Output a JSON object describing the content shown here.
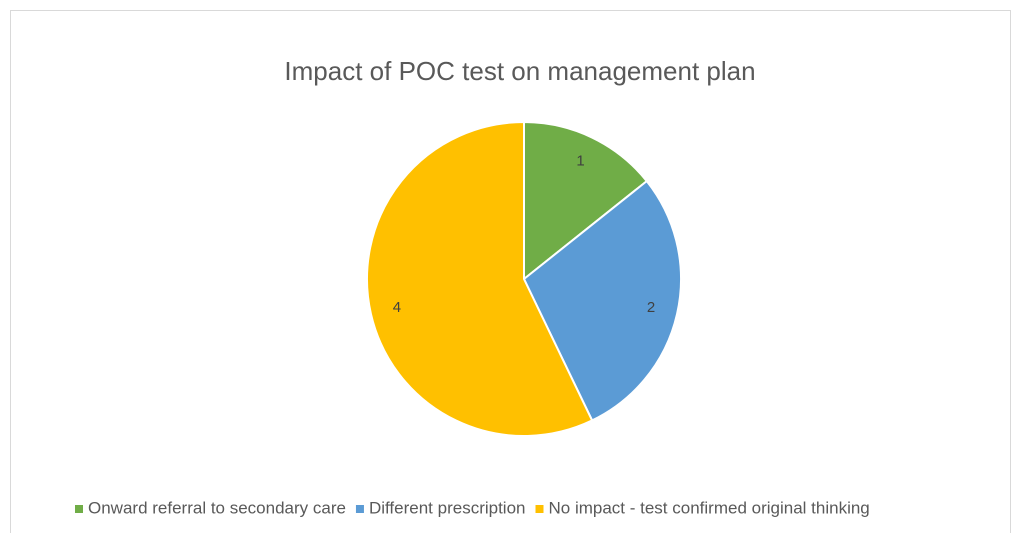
{
  "chart_data": {
    "type": "pie",
    "title": "Impact of POC test on management plan",
    "categories": [
      "Onward referral to secondary care",
      "Different prescription",
      "No impact - test confirmed original thinking"
    ],
    "values": [
      1,
      2,
      4
    ],
    "colors": [
      "#70ad47",
      "#5b9bd5",
      "#ffc000"
    ],
    "legend": "bottom"
  }
}
